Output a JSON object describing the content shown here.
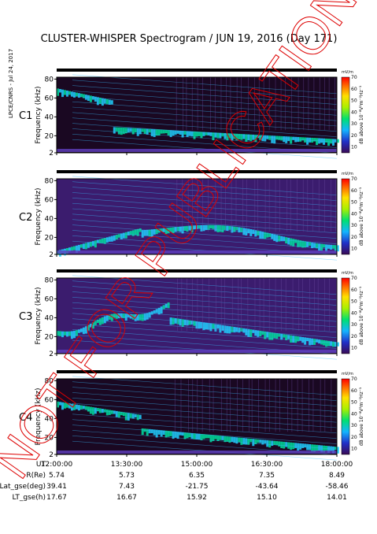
{
  "title": "CLUSTER-WHISPER Spectrogram / JUN 19, 2016 (Day 171)",
  "credit": "LPCE/CNRS - Jul 24, 2017",
  "watermark": "NOT FOR PUBLICATION",
  "y_label": "Frequency (kHz)",
  "colorbar_label": "dB above 10⁻⁸V²m⁻²Hz⁻¹",
  "colorbar_unit": "mV/m",
  "colorbar_ticks": [
    "70",
    "60",
    "50",
    "40",
    "30",
    "20",
    "10"
  ],
  "colors": {
    "c1": "#000000",
    "c2": "#000000",
    "c3": "#1faa1f",
    "c4": "#000000",
    "watermark": "#dd0000"
  },
  "chart_data": {
    "type": "heatmap",
    "panels": [
      {
        "name": "C1",
        "ylim": [
          2,
          82
        ],
        "yticks": [
          "80",
          "60",
          "40",
          "20",
          "2"
        ]
      },
      {
        "name": "C2",
        "ylim": [
          2,
          82
        ],
        "yticks": [
          "80",
          "60",
          "40",
          "20",
          "2"
        ]
      },
      {
        "name": "C3",
        "ylim": [
          2,
          82
        ],
        "yticks": [
          "80",
          "60",
          "40",
          "20",
          "2"
        ]
      },
      {
        "name": "C4",
        "ylim": [
          2,
          82
        ],
        "yticks": [
          "80",
          "60",
          "40",
          "20",
          "2"
        ]
      }
    ],
    "x_ticks": [
      "12:00:00",
      "13:30:00",
      "15:00:00",
      "16:30:00",
      "18:00:00"
    ],
    "zlim": [
      5,
      70
    ],
    "ephemeris": [
      {
        "label": "UT",
        "values": [
          "12:00:00",
          "13:30:00",
          "15:00:00",
          "16:30:00",
          "18:00:00"
        ]
      },
      {
        "label": "R(Re)",
        "values": [
          "5.74",
          "5.73",
          "6.35",
          "7.35",
          "8.49"
        ]
      },
      {
        "label": "Lat_gse(deg)",
        "values": [
          "39.41",
          "7.43",
          "-21.75",
          "-43.64",
          "-58.46"
        ]
      },
      {
        "label": "LT_gse(h)",
        "values": [
          "17.67",
          "16.67",
          "15.92",
          "15.10",
          "14.01"
        ]
      }
    ]
  }
}
